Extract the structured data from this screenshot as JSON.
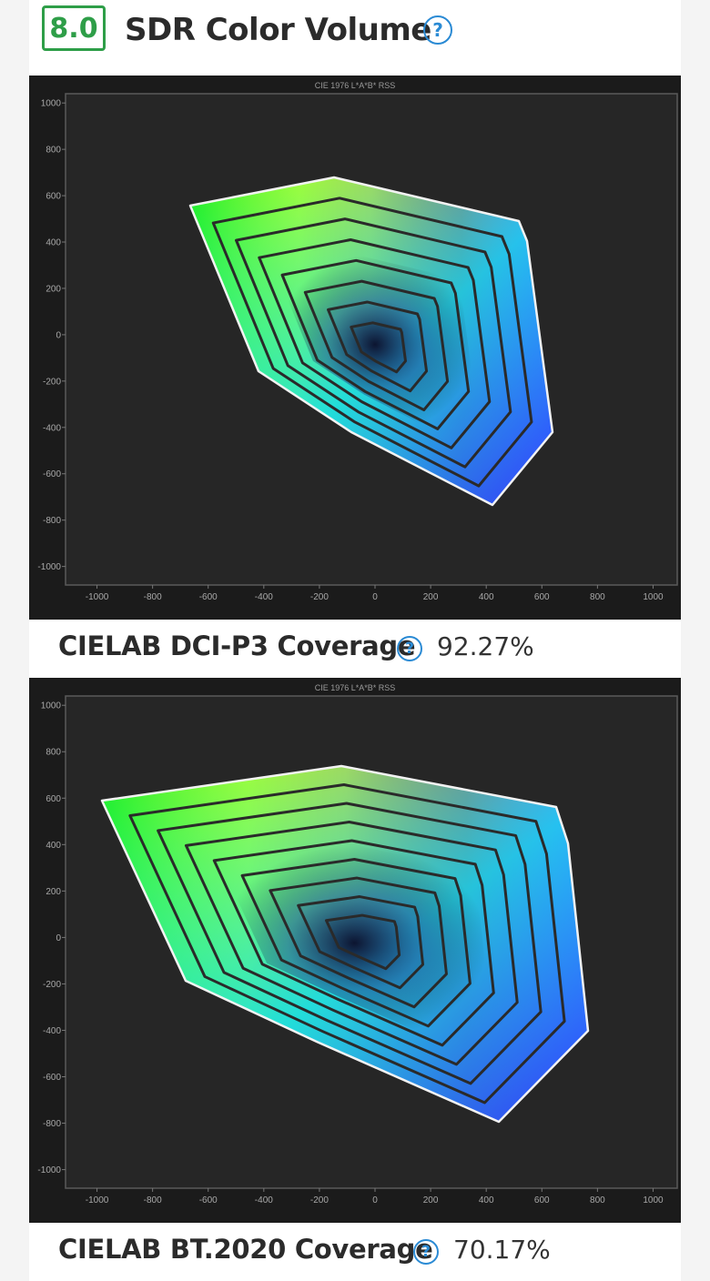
{
  "header": {
    "score": "8.0",
    "title": "SDR Color Volume",
    "help_glyph": "?"
  },
  "charts": [
    {
      "title": "CIE 1976 L*A*B* RSS",
      "x_ticks": [
        "-1000",
        "-800",
        "-600",
        "-400",
        "-200",
        "0",
        "200",
        "400",
        "600",
        "800",
        "1000"
      ],
      "y_ticks": [
        "1000",
        "800",
        "600",
        "400",
        "200",
        "0",
        "-200",
        "-400",
        "-600",
        "-800",
        "-1000"
      ],
      "metric_label": "CIELAB DCI-P3 Coverage",
      "metric_value": "92.27%"
    },
    {
      "title": "CIE 1976 L*A*B* RSS",
      "x_ticks": [
        "-1000",
        "-800",
        "-600",
        "-400",
        "-200",
        "0",
        "200",
        "400",
        "600",
        "800",
        "1000"
      ],
      "y_ticks": [
        "1000",
        "800",
        "600",
        "400",
        "200",
        "0",
        "-200",
        "-400",
        "-600",
        "-800",
        "-1000"
      ],
      "metric_label": "CIELAB BT.2020 Coverage",
      "metric_value": "70.17%"
    }
  ],
  "colors": {
    "score_green": "#2e9e48",
    "help_blue": "#2a8ad4",
    "plot_bg": "#262626"
  },
  "icons": [
    "help-circle-icon"
  ]
}
